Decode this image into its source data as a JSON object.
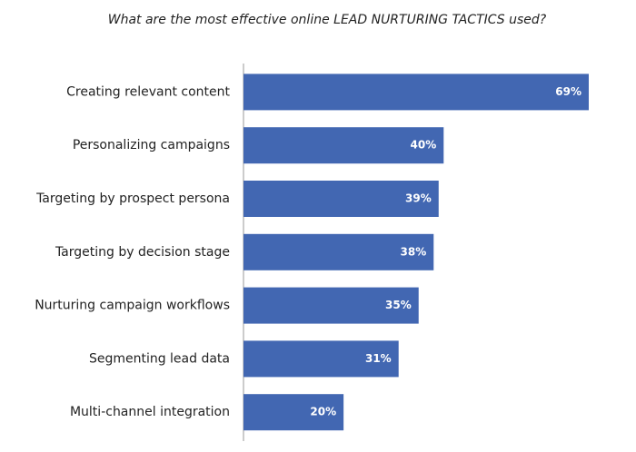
{
  "chart_data": {
    "type": "bar",
    "orientation": "horizontal",
    "title": "What are the most effective online LEAD NURTURING TACTICS used?",
    "categories": [
      "Creating relevant content",
      "Personalizing campaigns",
      "Targeting by prospect persona",
      "Targeting by decision stage",
      "Nurturing campaign workflows",
      "Segmenting lead data",
      "Multi-channel integration"
    ],
    "values": [
      69,
      40,
      39,
      38,
      35,
      31,
      20
    ],
    "value_labels": [
      "69%",
      "40%",
      "39%",
      "38%",
      "35%",
      "31%",
      "20%"
    ],
    "color": "#4267b2"
  }
}
